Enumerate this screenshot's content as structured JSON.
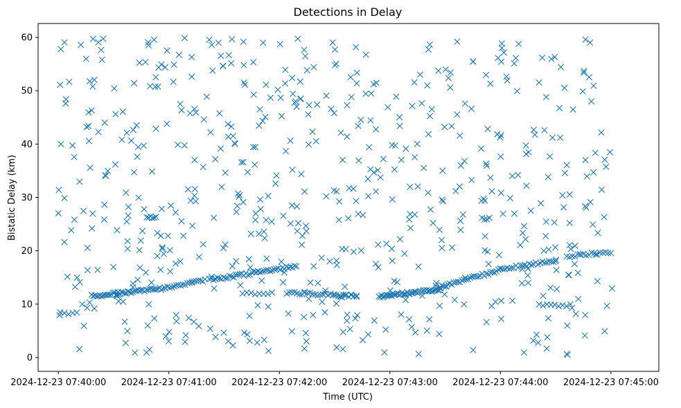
{
  "chart_data": {
    "type": "scatter",
    "title": "Detections in Delay",
    "xlabel": "Time (UTC)",
    "ylabel": "Bistatic Delay (km)",
    "marker": "x",
    "color": "#1f77b4",
    "x_unit": "seconds since 2024-12-23 07:40:00",
    "xlim": [
      -11,
      326
    ],
    "ylim": [
      -2.6,
      62.6
    ],
    "xticks": [
      {
        "value": 0,
        "label": "2024-12-23 07:40:00"
      },
      {
        "value": 60,
        "label": "2024-12-23 07:41:00"
      },
      {
        "value": 120,
        "label": "2024-12-23 07:42:00"
      },
      {
        "value": 180,
        "label": "2024-12-23 07:43:00"
      },
      {
        "value": 240,
        "label": "2024-12-23 07:44:00"
      },
      {
        "value": 300,
        "label": "2024-12-23 07:45:00"
      }
    ],
    "yticks": [
      0,
      10,
      20,
      30,
      40,
      50,
      60
    ],
    "track_segments": [
      {
        "t0": 18,
        "t1": 58,
        "y0": 11.5,
        "y1": 13.0,
        "step": 0.9
      },
      {
        "t0": 58,
        "t1": 80,
        "y0": 13.0,
        "y1": 14.6,
        "step": 1.2
      },
      {
        "t0": 82,
        "t1": 130,
        "y0": 14.5,
        "y1": 17.2,
        "step": 1.1
      },
      {
        "t0": 124,
        "t1": 162,
        "y0": 12.2,
        "y1": 11.5,
        "step": 1.4
      },
      {
        "t0": 174,
        "t1": 208,
        "y0": 11.4,
        "y1": 12.8,
        "step": 0.7
      },
      {
        "t0": 207,
        "t1": 240,
        "y0": 13.2,
        "y1": 16.4,
        "step": 1.1
      },
      {
        "t0": 240,
        "t1": 270,
        "y0": 16.5,
        "y1": 18.2,
        "step": 1.2
      },
      {
        "t0": 276,
        "t1": 300,
        "y0": 18.9,
        "y1": 19.8,
        "step": 1.5
      }
    ],
    "clusters": [
      {
        "t0": 1,
        "t1": 10,
        "y": 8.3,
        "n": 5
      },
      {
        "t0": 48,
        "t1": 53,
        "y": 26.3,
        "n": 6
      },
      {
        "t0": 100,
        "t1": 116,
        "y": 12.0,
        "n": 8
      },
      {
        "t0": 261,
        "t1": 278,
        "y": 9.8,
        "n": 9
      },
      {
        "t0": 230,
        "t1": 234,
        "y": 26.0,
        "n": 4
      },
      {
        "t0": 150,
        "t1": 162,
        "y": 11.6,
        "n": 5
      }
    ],
    "noise_points": 620,
    "noise_seed": 20241223
  }
}
